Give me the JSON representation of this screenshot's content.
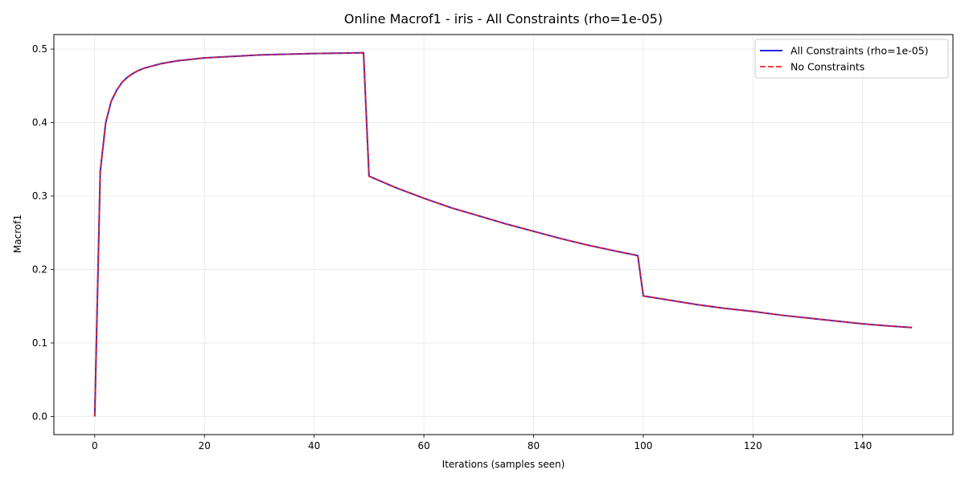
{
  "chart_data": {
    "type": "line",
    "title": "Online Macrof1 - iris - All Constraints (rho=1e-05)",
    "xlabel": "Iterations (samples seen)",
    "ylabel": "Macrof1",
    "xlim": [
      -7.45,
      156.45
    ],
    "ylim": [
      -0.0247,
      0.5198
    ],
    "xticks": [
      0,
      20,
      40,
      60,
      80,
      100,
      120,
      140
    ],
    "yticks": [
      0.0,
      0.1,
      0.2,
      0.3,
      0.4,
      0.5
    ],
    "xtick_labels": [
      "0",
      "20",
      "40",
      "60",
      "80",
      "100",
      "120",
      "140"
    ],
    "ytick_labels": [
      "0.0",
      "0.1",
      "0.2",
      "0.3",
      "0.4",
      "0.5"
    ],
    "grid": true,
    "legend": {
      "placement": "upper-right"
    },
    "series": [
      {
        "name": "All Constraints (rho=1e-05)",
        "color": "#0000dd",
        "style": "solid",
        "x": [
          0,
          1,
          2,
          3,
          4,
          5,
          6,
          7,
          8,
          9,
          10,
          12,
          15,
          20,
          25,
          30,
          35,
          40,
          45,
          49,
          50,
          55,
          60,
          65,
          70,
          75,
          80,
          85,
          90,
          95,
          99,
          100,
          105,
          110,
          115,
          120,
          125,
          130,
          135,
          140,
          145,
          149
        ],
        "y": [
          0.0,
          0.333,
          0.4,
          0.429,
          0.444,
          0.455,
          0.462,
          0.467,
          0.471,
          0.474,
          0.476,
          0.48,
          0.484,
          0.488,
          0.49,
          0.492,
          0.493,
          0.494,
          0.4945,
          0.495,
          0.327,
          0.311,
          0.297,
          0.284,
          0.273,
          0.262,
          0.252,
          0.242,
          0.233,
          0.225,
          0.219,
          0.164,
          0.158,
          0.152,
          0.147,
          0.143,
          0.138,
          0.134,
          0.13,
          0.126,
          0.123,
          0.121
        ]
      },
      {
        "name": "No Constraints",
        "color": "#ee2222",
        "style": "dashed",
        "x": [
          0,
          1,
          2,
          3,
          4,
          5,
          6,
          7,
          8,
          9,
          10,
          12,
          15,
          20,
          25,
          30,
          35,
          40,
          45,
          49,
          50,
          55,
          60,
          65,
          70,
          75,
          80,
          85,
          90,
          95,
          99,
          100,
          105,
          110,
          115,
          120,
          125,
          130,
          135,
          140,
          145,
          149
        ],
        "y": [
          0.0,
          0.333,
          0.4,
          0.429,
          0.444,
          0.455,
          0.462,
          0.467,
          0.471,
          0.474,
          0.476,
          0.48,
          0.484,
          0.488,
          0.49,
          0.492,
          0.493,
          0.494,
          0.4945,
          0.495,
          0.327,
          0.311,
          0.297,
          0.284,
          0.273,
          0.262,
          0.252,
          0.242,
          0.233,
          0.225,
          0.219,
          0.164,
          0.158,
          0.152,
          0.147,
          0.143,
          0.138,
          0.134,
          0.13,
          0.126,
          0.123,
          0.121
        ]
      }
    ]
  }
}
